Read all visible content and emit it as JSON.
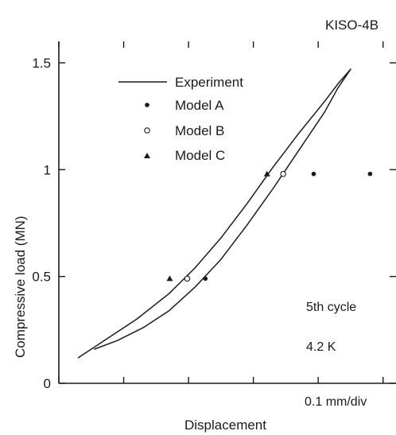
{
  "chart_data": {
    "type": "line",
    "title": "KISO-4B",
    "xlabel": "Displacement",
    "ylabel": "Compressive load (MN)",
    "x_scale_note": "0.1 mm/div",
    "ylim": [
      0,
      1.5
    ],
    "y_ticks": [
      {
        "value": 0,
        "label": "0"
      },
      {
        "value": 0.5,
        "label": "0.5"
      },
      {
        "value": 1,
        "label": "1"
      },
      {
        "value": 1.5,
        "label": "1.5"
      }
    ],
    "xlim": [
      0,
      0.52
    ],
    "legend": {
      "placement": "upper-left",
      "items": [
        {
          "label": "Experiment",
          "marker": "line"
        },
        {
          "label": "Model A",
          "marker": "filled-circle"
        },
        {
          "label": "Model B",
          "marker": "open-circle"
        },
        {
          "label": "Model C",
          "marker": "triangle"
        }
      ]
    },
    "annotations": [
      "5th cycle",
      "4.2 K"
    ],
    "series": [
      {
        "name": "Experiment",
        "kind": "line",
        "x": [
          0.03,
          0.07,
          0.12,
          0.17,
          0.21,
          0.25,
          0.29,
          0.33,
          0.37,
          0.41,
          0.43,
          0.45
        ],
        "y": [
          0.12,
          0.2,
          0.3,
          0.42,
          0.54,
          0.68,
          0.84,
          1.01,
          1.17,
          1.32,
          1.4,
          1.47
        ]
      },
      {
        "kind": "line",
        "x": [
          0.45,
          0.43,
          0.41,
          0.37,
          0.33,
          0.29,
          0.25,
          0.21,
          0.17,
          0.13,
          0.09,
          0.055
        ],
        "y": [
          1.47,
          1.38,
          1.27,
          1.09,
          0.91,
          0.74,
          0.58,
          0.45,
          0.34,
          0.26,
          0.2,
          0.16
        ]
      },
      {
        "name": "Model A",
        "kind": "scatter",
        "marker": "filled-circle",
        "x": [
          0.226,
          0.393,
          0.48
        ],
        "y": [
          0.49,
          0.98,
          0.98
        ]
      },
      {
        "name": "Model B",
        "kind": "scatter",
        "marker": "open-circle",
        "x": [
          0.198,
          0.346
        ],
        "y": [
          0.49,
          0.98
        ]
      },
      {
        "name": "Model C",
        "kind": "scatter",
        "marker": "triangle",
        "x": [
          0.171,
          0.321
        ],
        "y": [
          0.49,
          0.98
        ]
      }
    ]
  }
}
